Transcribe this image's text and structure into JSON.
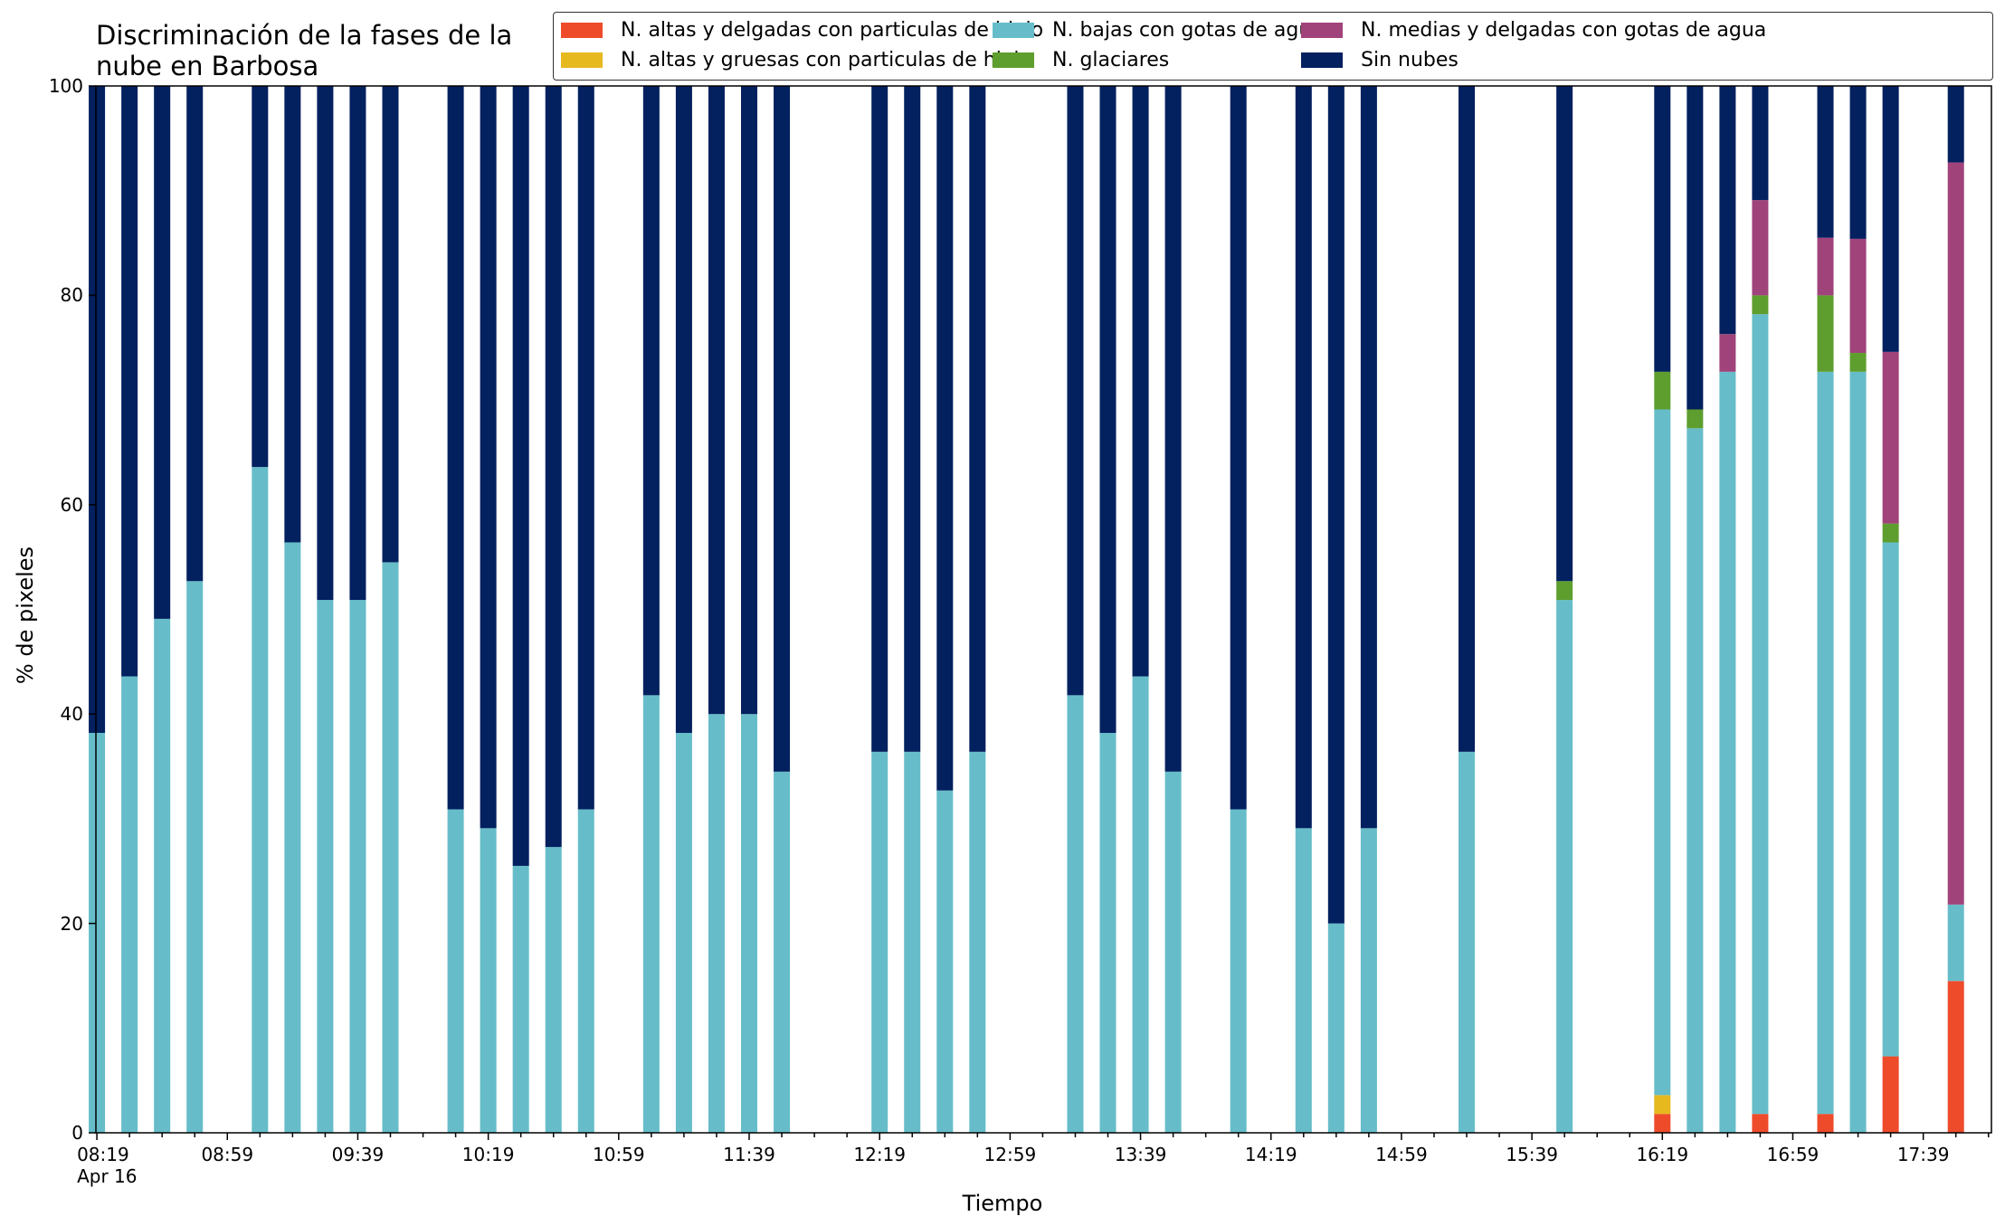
{
  "chart_data": {
    "type": "bar",
    "stacked": true,
    "title": "Discriminación de la fases de la\nnube en Barbosa",
    "xlabel": "Tiempo",
    "ylabel": "% de pixeles",
    "ylim": [
      0,
      100
    ],
    "yticks": [
      "0",
      "20",
      "40",
      "60",
      "80",
      "100"
    ],
    "grid": false,
    "legend_position": "top-right",
    "time_axis": {
      "start": "08:19",
      "end": "17:59",
      "bar_interval_min": 10
    },
    "xtick_labels": [
      "08:19\nApr 16",
      "08:59",
      "09:39",
      "10:19",
      "10:59",
      "11:39",
      "12:19",
      "12:59",
      "13:39",
      "14:19",
      "14:59",
      "15:39",
      "16:19",
      "16:59",
      "17:39"
    ],
    "series": [
      {
        "name": "N. altas y delgadas con particulas de hielo",
        "color": "#EE4B2B"
      },
      {
        "name": "N. altas y gruesas con particulas de hielo",
        "color": "#E6B91E"
      },
      {
        "name": "N. bajas con gotas de agua",
        "color": "#66BDC9"
      },
      {
        "name": "N. glaciares",
        "color": "#5E9E2E"
      },
      {
        "name": "N. medias y delgadas con gotas de agua",
        "color": "#A0437A"
      },
      {
        "name": "Sin nubes",
        "color": "#03205F"
      }
    ],
    "legend_layout": [
      [
        "N. altas y delgadas con particulas de hielo",
        "N. altas y gruesas con particulas de hielo"
      ],
      [
        "N. bajas con gotas de agua",
        "N. glaciares"
      ],
      [
        "N. medias y delgadas con gotas de agua",
        "Sin nubes"
      ]
    ],
    "bars": [
      {
        "time": "08:19",
        "values": [
          0,
          0,
          38.2,
          0,
          0,
          61.8
        ]
      },
      {
        "time": "08:29",
        "values": [
          0,
          0,
          43.6,
          0,
          0,
          56.4
        ]
      },
      {
        "time": "08:39",
        "values": [
          0,
          0,
          49.1,
          0,
          0,
          50.9
        ]
      },
      {
        "time": "08:49",
        "values": [
          0,
          0,
          52.7,
          0,
          0,
          47.3
        ]
      },
      {
        "time": "09:09",
        "values": [
          0,
          0,
          63.6,
          0,
          0,
          36.4
        ]
      },
      {
        "time": "09:19",
        "values": [
          0,
          0,
          56.4,
          0,
          0,
          43.6
        ]
      },
      {
        "time": "09:29",
        "values": [
          0,
          0,
          50.9,
          0,
          0,
          49.1
        ]
      },
      {
        "time": "09:39",
        "values": [
          0,
          0,
          50.9,
          0,
          0,
          49.1
        ]
      },
      {
        "time": "09:49",
        "values": [
          0,
          0,
          54.5,
          0,
          0,
          45.5
        ]
      },
      {
        "time": "10:09",
        "values": [
          0,
          0,
          30.9,
          0,
          0,
          69.1
        ]
      },
      {
        "time": "10:19",
        "values": [
          0,
          0,
          29.1,
          0,
          0,
          70.9
        ]
      },
      {
        "time": "10:29",
        "values": [
          0,
          0,
          25.5,
          0,
          0,
          74.5
        ]
      },
      {
        "time": "10:39",
        "values": [
          0,
          0,
          27.3,
          0,
          0,
          72.7
        ]
      },
      {
        "time": "10:49",
        "values": [
          0,
          0,
          30.9,
          0,
          0,
          69.1
        ]
      },
      {
        "time": "11:09",
        "values": [
          0,
          0,
          41.8,
          0,
          0,
          58.2
        ]
      },
      {
        "time": "11:19",
        "values": [
          0,
          0,
          38.2,
          0,
          0,
          61.8
        ]
      },
      {
        "time": "11:29",
        "values": [
          0,
          0,
          40.0,
          0,
          0,
          60.0
        ]
      },
      {
        "time": "11:39",
        "values": [
          0,
          0,
          40.0,
          0,
          0,
          60.0
        ]
      },
      {
        "time": "11:49",
        "values": [
          0,
          0,
          34.5,
          0,
          0,
          65.5
        ]
      },
      {
        "time": "12:19",
        "values": [
          0,
          0,
          36.4,
          0,
          0,
          63.6
        ]
      },
      {
        "time": "12:29",
        "values": [
          0,
          0,
          36.4,
          0,
          0,
          63.6
        ]
      },
      {
        "time": "12:39",
        "values": [
          0,
          0,
          32.7,
          0,
          0,
          67.3
        ]
      },
      {
        "time": "12:49",
        "values": [
          0,
          0,
          36.4,
          0,
          0,
          63.6
        ]
      },
      {
        "time": "13:19",
        "values": [
          0,
          0,
          41.8,
          0,
          0,
          58.2
        ]
      },
      {
        "time": "13:29",
        "values": [
          0,
          0,
          38.2,
          0,
          0,
          61.8
        ]
      },
      {
        "time": "13:39",
        "values": [
          0,
          0,
          43.6,
          0,
          0,
          56.4
        ]
      },
      {
        "time": "13:49",
        "values": [
          0,
          0,
          34.5,
          0,
          0,
          65.5
        ]
      },
      {
        "time": "14:09",
        "values": [
          0,
          0,
          30.9,
          0,
          0,
          69.1
        ]
      },
      {
        "time": "14:29",
        "values": [
          0,
          0,
          29.1,
          0,
          0,
          70.9
        ]
      },
      {
        "time": "14:39",
        "values": [
          0,
          0,
          20.0,
          0,
          0,
          80.0
        ]
      },
      {
        "time": "14:49",
        "values": [
          0,
          0,
          29.1,
          0,
          0,
          70.9
        ]
      },
      {
        "time": "15:19",
        "values": [
          0,
          0,
          36.4,
          0,
          0,
          63.6
        ]
      },
      {
        "time": "15:49",
        "values": [
          0,
          0,
          50.9,
          1.8,
          0,
          47.3
        ]
      },
      {
        "time": "16:19",
        "values": [
          1.8,
          1.8,
          65.5,
          3.6,
          0,
          27.3
        ]
      },
      {
        "time": "16:29",
        "values": [
          0,
          0,
          67.3,
          1.8,
          0,
          30.9
        ]
      },
      {
        "time": "16:39",
        "values": [
          0,
          0,
          72.7,
          0,
          3.6,
          23.7
        ]
      },
      {
        "time": "16:49",
        "values": [
          1.8,
          0,
          76.4,
          1.8,
          9.1,
          10.9
        ]
      },
      {
        "time": "17:09",
        "values": [
          1.8,
          0,
          70.9,
          7.3,
          5.5,
          14.5
        ]
      },
      {
        "time": "17:19",
        "values": [
          0,
          0,
          72.7,
          1.8,
          10.9,
          14.6
        ]
      },
      {
        "time": "17:29",
        "values": [
          7.3,
          0,
          49.1,
          1.8,
          16.4,
          25.4
        ]
      },
      {
        "time": "17:49",
        "values": [
          14.5,
          0,
          7.3,
          0,
          70.9,
          7.3
        ]
      }
    ]
  }
}
